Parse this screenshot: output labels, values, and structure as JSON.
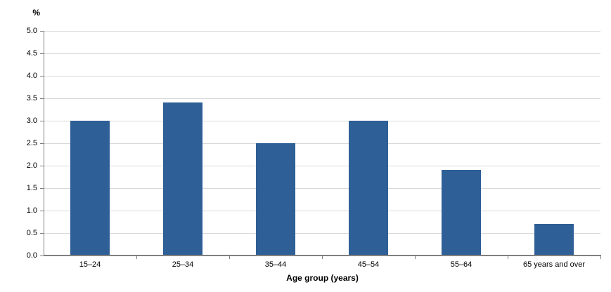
{
  "chart_data": {
    "type": "bar",
    "title": "",
    "categories": [
      "15–24",
      "25–34",
      "35–44",
      "45–54",
      "55–64",
      "65 years and over"
    ],
    "values": [
      3.0,
      3.4,
      2.5,
      3.0,
      1.9,
      0.7
    ],
    "xlabel": "Age group (years)",
    "ylabel": "%",
    "ylim": [
      0,
      5
    ],
    "ytick_step": 0.5,
    "ytick_decimals": 1,
    "grid": true,
    "legend_position": "none",
    "bar_color": "#2e5f96",
    "gridline_color": "#d9d9d9",
    "axis_color": "#808080",
    "text_color": "#000000"
  }
}
